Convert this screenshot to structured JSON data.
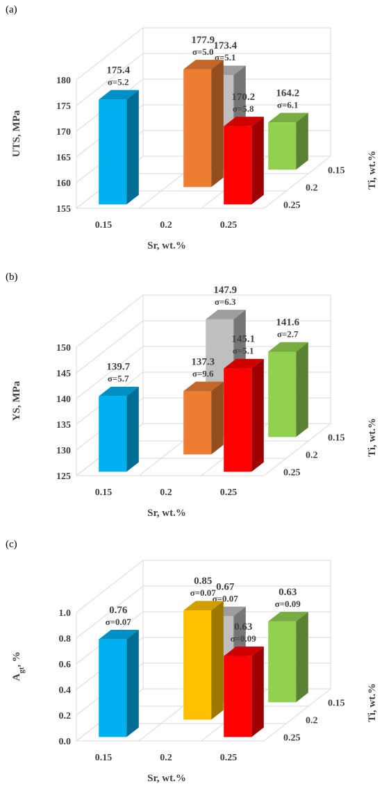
{
  "chart_data": [
    {
      "panel_label": "(a)",
      "type": "bar3d",
      "ylabel": "UTS, MPa",
      "xlabel": "Sr, wt.%",
      "zlabel": "Ti, wt.%",
      "ylim": [
        155,
        180
      ],
      "yticks": [
        "155",
        "160",
        "165",
        "170",
        "175",
        "180"
      ],
      "x_categories": [
        "0.15",
        "0.2",
        "0.25"
      ],
      "z_categories": [
        "0.15",
        "0.2",
        "0.25"
      ],
      "bars": [
        {
          "x": "0.15",
          "z": "0.25",
          "value": 175.4,
          "value_label": "175.4",
          "sigma_label": "σ=5.2",
          "color": "#00B0F0"
        },
        {
          "x": "0.2",
          "z": "0.15",
          "value": 173.4,
          "value_label": "173.4",
          "sigma_label": "σ=5.1",
          "color": "#BFBFBF"
        },
        {
          "x": "0.2",
          "z": "0.2",
          "value": 177.9,
          "value_label": "177.9",
          "sigma_label": "σ=5.0",
          "color": "#ED7D31"
        },
        {
          "x": "0.25",
          "z": "0.25",
          "value": 170.2,
          "value_label": "170.2",
          "sigma_label": "σ=5.8",
          "color": "#FF0000"
        },
        {
          "x": "0.25",
          "z": "0.15",
          "value": 164.2,
          "value_label": "164.2",
          "sigma_label": "σ=6.1",
          "color": "#92D050"
        }
      ]
    },
    {
      "panel_label": "(b)",
      "type": "bar3d",
      "ylabel": "YS, MPa",
      "xlabel": "Sr, wt.%",
      "zlabel": "Ti, wt.%",
      "ylim": [
        125,
        150
      ],
      "yticks": [
        "125",
        "130",
        "135",
        "140",
        "145",
        "150"
      ],
      "x_categories": [
        "0.15",
        "0.2",
        "0.25"
      ],
      "z_categories": [
        "0.15",
        "0.2",
        "0.25"
      ],
      "bars": [
        {
          "x": "0.15",
          "z": "0.25",
          "value": 139.7,
          "value_label": "139.7",
          "sigma_label": "σ=5.7",
          "color": "#00B0F0"
        },
        {
          "x": "0.2",
          "z": "0.15",
          "value": 147.9,
          "value_label": "147.9",
          "sigma_label": "σ=6.3",
          "color": "#BFBFBF"
        },
        {
          "x": "0.2",
          "z": "0.2",
          "value": 137.3,
          "value_label": "137.3",
          "sigma_label": "σ=9.6",
          "color": "#ED7D31"
        },
        {
          "x": "0.25",
          "z": "0.25",
          "value": 145.1,
          "value_label": "145.1",
          "sigma_label": "σ=5.1",
          "color": "#FF0000"
        },
        {
          "x": "0.25",
          "z": "0.15",
          "value": 141.6,
          "value_label": "141.6",
          "sigma_label": "σ=2.7",
          "color": "#92D050"
        }
      ]
    },
    {
      "panel_label": "(c)",
      "type": "bar3d",
      "ylabel": "A",
      "ylabel_sub": "gt",
      "ylabel_suffix": ", %",
      "xlabel": "Sr, wt.%",
      "zlabel": "Ti, wt.%",
      "ylim": [
        0.0,
        1.0
      ],
      "yticks": [
        "0.0",
        "0.2",
        "0.4",
        "0.6",
        "0.8",
        "1.0"
      ],
      "x_categories": [
        "0.15",
        "0.2",
        "0.25"
      ],
      "z_categories": [
        "0.15",
        "0.2",
        "0.25"
      ],
      "bars": [
        {
          "x": "0.15",
          "z": "0.25",
          "value": 0.76,
          "value_label": "0.76",
          "sigma_label": "σ=0.07",
          "color": "#00B0F0"
        },
        {
          "x": "0.2",
          "z": "0.15",
          "value": 0.67,
          "value_label": "0.67",
          "sigma_label": "σ=0.07",
          "color": "#BFBFBF"
        },
        {
          "x": "0.2",
          "z": "0.2",
          "value": 0.85,
          "value_label": "0.85",
          "sigma_label": "σ=0.07",
          "color": "#FFC000"
        },
        {
          "x": "0.25",
          "z": "0.25",
          "value": 0.63,
          "value_label": "0.63",
          "sigma_label": "σ=0.09",
          "color": "#FF0000"
        },
        {
          "x": "0.25",
          "z": "0.15",
          "value": 0.63,
          "value_label": "0.63",
          "sigma_label": "σ=0.09",
          "color": "#92D050"
        }
      ]
    }
  ]
}
